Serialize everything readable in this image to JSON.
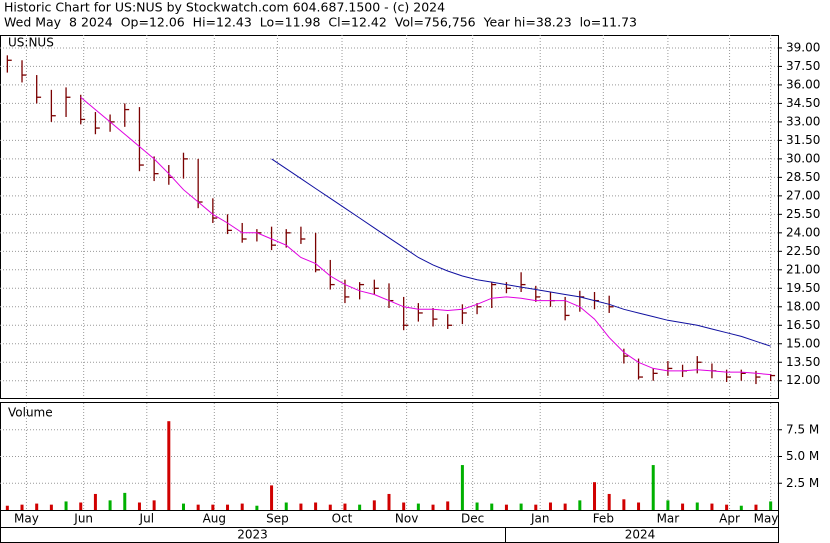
{
  "chart_data": {
    "type": "ohlc",
    "title": "Historic Chart for US:NUS by Stockwatch.com 604.687.1500 - (c) 2024",
    "subtitle": "Wed May  8 2024  Op=12.06  Hi=12.43  Lo=11.98  Cl=12.42  Vol=756,756  Year hi=38.23  lo=11.73",
    "label": "US:NUS",
    "color": "#7a0000",
    "high": [
      38.4,
      38.0,
      36.8,
      35.6,
      35.8,
      35.2,
      33.8,
      33.6,
      34.5,
      34.2,
      30.2,
      29.5,
      30.5,
      30.0,
      26.8,
      25.5,
      24.8,
      24.3,
      24.5,
      24.3,
      24.5,
      24.0,
      21.8,
      20.2,
      20.0,
      20.2,
      19.9,
      18.8,
      18.3,
      17.9,
      17.4,
      18.2,
      18.3,
      20.0,
      20.0,
      20.8,
      19.7,
      19.2,
      18.8,
      19.3,
      19.2,
      18.9,
      14.6,
      13.8,
      13.0,
      13.6,
      13.3,
      14.0,
      13.4,
      12.9,
      12.9,
      12.8,
      12.55
    ],
    "low": [
      37.0,
      36.2,
      34.5,
      33.0,
      33.4,
      32.8,
      32.0,
      32.2,
      32.6,
      29.0,
      28.2,
      27.9,
      28.4,
      26.0,
      24.8,
      23.9,
      23.2,
      23.3,
      22.6,
      22.8,
      23.1,
      20.8,
      19.4,
      18.3,
      18.6,
      19.0,
      17.9,
      16.1,
      16.8,
      16.4,
      16.2,
      16.6,
      17.4,
      17.9,
      19.1,
      19.2,
      18.4,
      18.0,
      16.9,
      17.6,
      17.8,
      17.5,
      13.4,
      12.1,
      12.0,
      12.4,
      12.3,
      12.6,
      12.2,
      11.9,
      12.0,
      11.73,
      11.98
    ],
    "close": [
      38.0,
      36.8,
      35.0,
      33.5,
      35.0,
      33.2,
      32.5,
      33.0,
      34.0,
      29.5,
      28.8,
      28.5,
      30.0,
      26.5,
      25.2,
      24.2,
      23.5,
      24.0,
      23.0,
      24.0,
      23.5,
      21.0,
      19.8,
      18.8,
      19.8,
      19.5,
      18.5,
      16.5,
      17.5,
      17.0,
      16.5,
      17.5,
      18.0,
      19.8,
      19.5,
      19.8,
      18.8,
      18.5,
      17.3,
      18.8,
      18.5,
      18.0,
      14.0,
      12.3,
      12.6,
      13.0,
      12.8,
      13.5,
      12.8,
      12.3,
      12.6,
      12.3,
      12.42
    ],
    "series": [
      {
        "color": "#e000e0",
        "values": [
          null,
          null,
          null,
          null,
          null,
          35,
          34,
          33,
          32,
          31,
          30,
          28.8,
          27.5,
          26.5,
          25.5,
          24.8,
          24,
          24,
          23.5,
          23,
          22,
          21.5,
          20.5,
          19.8,
          19.3,
          19,
          18.5,
          18,
          17.8,
          17.8,
          17.7,
          17.8,
          18.2,
          18.7,
          18.8,
          18.7,
          18.5,
          18.5,
          18.5,
          18,
          17,
          15.5,
          14.3,
          13.5,
          13,
          12.8,
          12.8,
          12.9,
          12.8,
          12.7,
          12.7,
          12.6,
          12.5
        ]
      },
      {
        "color": "#1010a0",
        "values": [
          null,
          null,
          null,
          null,
          null,
          null,
          null,
          null,
          null,
          null,
          null,
          null,
          null,
          null,
          null,
          null,
          null,
          null,
          30,
          29.2,
          28.4,
          27.6,
          26.8,
          26,
          25.2,
          24.4,
          23.6,
          22.8,
          22,
          21.4,
          20.9,
          20.5,
          20.2,
          20,
          19.8,
          19.6,
          19.4,
          19.2,
          19,
          18.8,
          18.5,
          18.2,
          17.8,
          17.5,
          17.2,
          16.9,
          16.7,
          16.5,
          16.2,
          15.9,
          15.6,
          15.2,
          14.8
        ]
      }
    ],
    "xlim": [
      -0.5,
      52.5
    ],
    "xticks": [
      {
        "value": 1.3,
        "label": "May"
      },
      {
        "value": 5.2,
        "label": "Jun"
      },
      {
        "value": 9.5,
        "label": "Jul"
      },
      {
        "value": 14.1,
        "label": "Aug"
      },
      {
        "value": 18.4,
        "label": "Sep"
      },
      {
        "value": 22.8,
        "label": "Oct"
      },
      {
        "value": 27.2,
        "label": "Nov"
      },
      {
        "value": 31.7,
        "label": "Dec"
      },
      {
        "value": 36.3,
        "label": "Jan"
      },
      {
        "value": 40.6,
        "label": "Feb"
      },
      {
        "value": 45,
        "label": "Mar"
      },
      {
        "value": 49.2,
        "label": "Apr"
      },
      {
        "value": 52,
        "label": "May"
      }
    ],
    "years": [
      {
        "value": 16.7,
        "label": "2023"
      },
      {
        "value": 43.1,
        "label": "2024"
      }
    ],
    "ylim": [
      10.6,
      40.05
    ],
    "yticks": [
      {
        "value": 12,
        "label": "12.00"
      },
      {
        "value": 13.5,
        "label": "13.50"
      },
      {
        "value": 15,
        "label": "15.00"
      },
      {
        "value": 16.5,
        "label": "16.50"
      },
      {
        "value": 18,
        "label": "18.00"
      },
      {
        "value": 19.5,
        "label": "19.50"
      },
      {
        "value": 21,
        "label": "21.00"
      },
      {
        "value": 22.5,
        "label": "22.50"
      },
      {
        "value": 24,
        "label": "24.00"
      },
      {
        "value": 25.5,
        "label": "25.50"
      },
      {
        "value": 27,
        "label": "27.00"
      },
      {
        "value": 28.5,
        "label": "28.50"
      },
      {
        "value": 30,
        "label": "30.00"
      },
      {
        "value": 31.5,
        "label": "31.50"
      },
      {
        "value": 33,
        "label": "33.00"
      },
      {
        "value": 34.5,
        "label": "34.50"
      },
      {
        "value": 36,
        "label": "36.00"
      },
      {
        "value": 37.5,
        "label": "37.50"
      },
      {
        "value": 39,
        "label": "39.00"
      }
    ],
    "grid": true,
    "volume": {
      "title": "Volume",
      "up_color": "#00b000",
      "down_color": "#d00000",
      "values": [
        0.4,
        0.5,
        0.6,
        0.5,
        0.8,
        0.7,
        1.5,
        0.9,
        1.6,
        0.7,
        0.9,
        8.3,
        0.6,
        0.5,
        0.5,
        0.5,
        0.6,
        0.4,
        2.3,
        0.7,
        0.6,
        0.7,
        0.5,
        0.6,
        0.5,
        0.9,
        1.5,
        0.7,
        0.6,
        0.5,
        0.8,
        4.2,
        0.7,
        0.6,
        0.5,
        0.6,
        0.5,
        0.7,
        0.6,
        0.9,
        2.6,
        1.5,
        1.0,
        0.7,
        4.2,
        0.9,
        0.6,
        0.7,
        0.6,
        0.5,
        0.4,
        0.5,
        0.8
      ],
      "ylim": [
        0,
        10
      ],
      "yticks": [
        {
          "value": 2.5,
          "label": "2.5 M"
        },
        {
          "value": 5,
          "label": "5.0 M"
        },
        {
          "value": 7.5,
          "label": "7.5 M"
        }
      ]
    }
  }
}
